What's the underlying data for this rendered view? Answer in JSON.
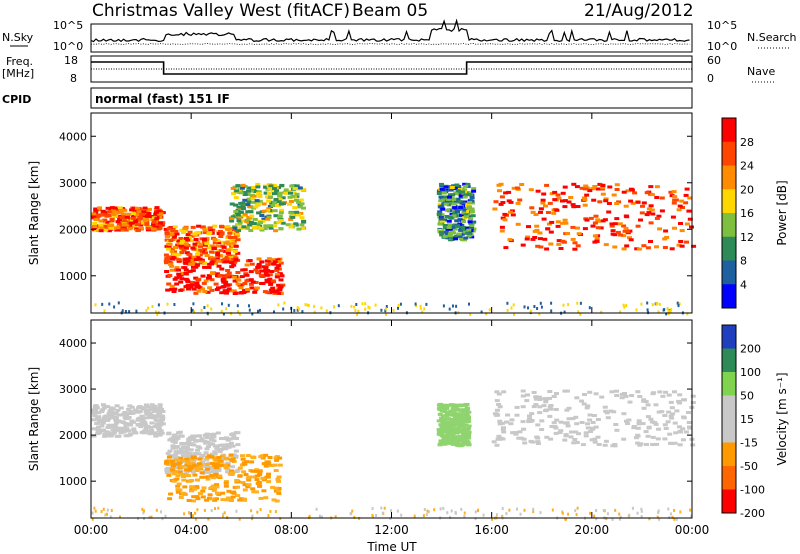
{
  "header": {
    "title": "Christmas Valley West (fitACF)",
    "beam": "Beam 05",
    "date": "21/Aug/2012"
  },
  "small_panels": {
    "nsky_label": "N.Sky",
    "nsky_ticks_left": [
      "10^5",
      "10^0"
    ],
    "nsky_ticks_right": [
      "10^5",
      "10^0"
    ],
    "nsearch_label": "N.Search",
    "freq_label": "Freq.",
    "freq_unit": "[MHz]",
    "freq_ticks": [
      "18",
      "8"
    ],
    "nave_label": "Nave",
    "nave_ticks": [
      "60",
      "0"
    ],
    "cpid_label": "CPID",
    "cpid_text": "normal (fast) 151 IF"
  },
  "chart_data": [
    {
      "type": "heatmap",
      "name": "power",
      "ylabel": "Slant Range [km]",
      "xlabel": "",
      "x_ticks": [
        "00:00",
        "04:00",
        "08:00",
        "12:00",
        "16:00",
        "20:00",
        "00:00"
      ],
      "y_ticks": [
        "1000",
        "2000",
        "3000",
        "4000"
      ],
      "ylim": [
        200,
        4500
      ],
      "xlim_hours": [
        0,
        24
      ],
      "colorbar_label": "Power [dB]",
      "colorbar_ticks": [
        "28",
        "24",
        "20",
        "16",
        "12",
        "8",
        "4"
      ],
      "colorbar_colors": [
        "#ff0000",
        "#ff4500",
        "#ff8c00",
        "#ffd700",
        "#7fbf3f",
        "#2e8b57",
        "#1e5fa0",
        "#0000ff"
      ],
      "features": [
        {
          "t0": 0.0,
          "t1": 2.8,
          "r0": 2000,
          "r1": 2500,
          "level": 0.8
        },
        {
          "t0": 2.9,
          "t1": 5.8,
          "r0": 1300,
          "r1": 2100,
          "level": 0.75
        },
        {
          "t0": 2.9,
          "t1": 7.6,
          "r0": 650,
          "r1": 1400,
          "level": 0.9
        },
        {
          "t0": 5.5,
          "t1": 8.4,
          "r0": 2000,
          "r1": 3000,
          "level": 0.45
        },
        {
          "t0": 13.8,
          "t1": 15.2,
          "r0": 1800,
          "r1": 3000,
          "level": 0.3
        },
        {
          "t0": 16.0,
          "t1": 24.0,
          "r0": 1600,
          "r1": 3000,
          "level": 0.85
        }
      ]
    },
    {
      "type": "heatmap",
      "name": "velocity",
      "ylabel": "Slant Range [km]",
      "xlabel": "Time UT",
      "x_ticks": [
        "00:00",
        "04:00",
        "08:00",
        "12:00",
        "16:00",
        "20:00",
        "00:00"
      ],
      "y_ticks": [
        "1000",
        "2000",
        "3000",
        "4000"
      ],
      "ylim": [
        200,
        4500
      ],
      "xlim_hours": [
        0,
        24
      ],
      "colorbar_label": "Velocity [m s⁻¹]",
      "colorbar_ticks": [
        "200",
        "100",
        "50",
        "15",
        "-15",
        "-50",
        "-100",
        "-200"
      ],
      "colorbar_colors": [
        "#1f3fbf",
        "#2e8b57",
        "#7fd34f",
        "#c8c8c8",
        "#c8c8c8",
        "#ff9900",
        "#ff6600",
        "#ff0000"
      ],
      "features": [
        {
          "t0": 0.0,
          "t1": 2.8,
          "r0": 2000,
          "r1": 2700,
          "color": "gray"
        },
        {
          "t0": 2.9,
          "t1": 5.8,
          "r0": 1200,
          "r1": 2100,
          "color": "gray"
        },
        {
          "t0": 2.9,
          "t1": 7.5,
          "r0": 600,
          "r1": 1600,
          "color": "orange"
        },
        {
          "t0": 13.8,
          "t1": 15.0,
          "r0": 1800,
          "r1": 2700,
          "color": "green"
        },
        {
          "t0": 16.0,
          "t1": 24.0,
          "r0": 1800,
          "r1": 3000,
          "color": "gray"
        }
      ]
    }
  ]
}
